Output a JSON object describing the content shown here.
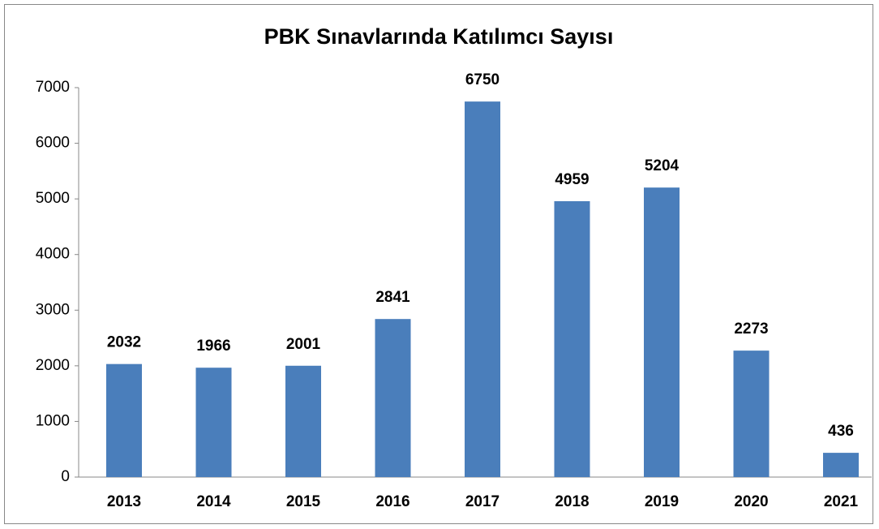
{
  "chart_data": {
    "type": "bar",
    "title": "PBK Sınavlarında Katılımcı Sayısı",
    "categories": [
      "2013",
      "2014",
      "2015",
      "2016",
      "2017",
      "2018",
      "2019",
      "2020",
      "2021"
    ],
    "values": [
      2032,
      1966,
      2001,
      2841,
      6750,
      4959,
      5204,
      2273,
      436
    ],
    "color": "#4a7ebb",
    "ylim": [
      0,
      7000
    ],
    "yticks": [
      0,
      1000,
      2000,
      3000,
      4000,
      5000,
      6000,
      7000
    ],
    "grid": false
  }
}
